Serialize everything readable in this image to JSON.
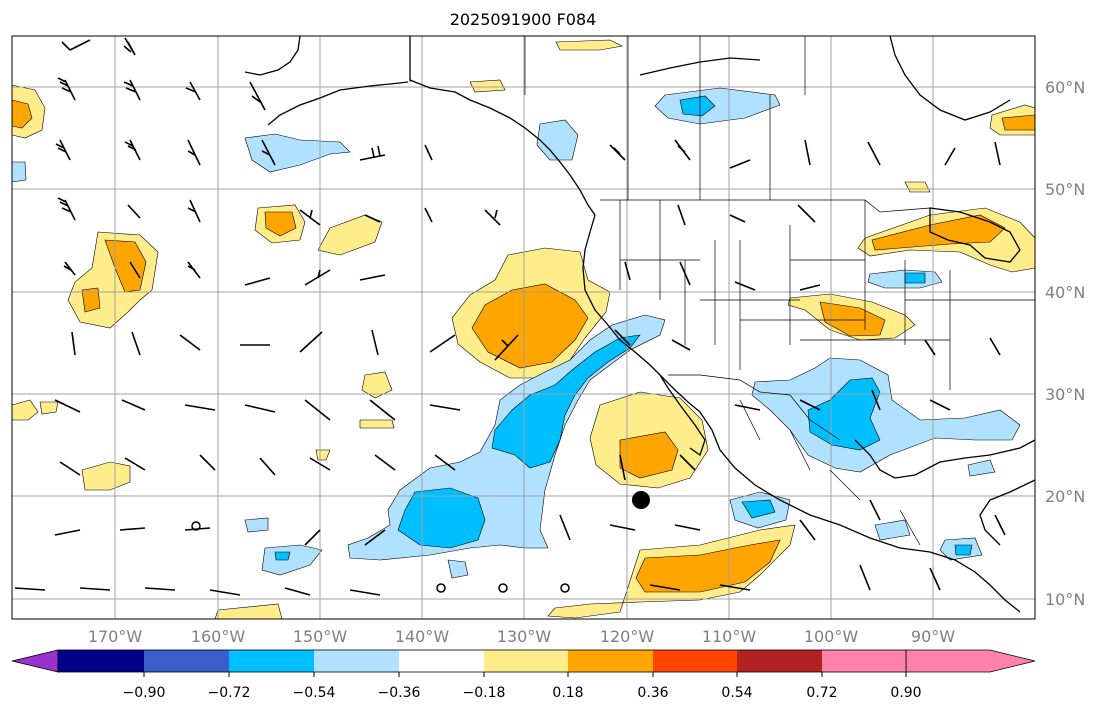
{
  "title": "2025091900 F084",
  "lat_labels": [
    "60°N",
    "50°N",
    "40°N",
    "30°N",
    "20°N",
    "10°N"
  ],
  "lon_labels": [
    "170°W",
    "160°W",
    "150°W",
    "140°W",
    "130°W",
    "120°W",
    "110°W",
    "100°W",
    "90°W"
  ],
  "colorbar": {
    "colors": [
      "#9a32cd",
      "#00008b",
      "#3a5fcd",
      "#00bfff",
      "#b0e2ff",
      "#ffffff",
      "#ffec8b",
      "#ffa500",
      "#ff4500",
      "#b22222",
      "#ff82ab"
    ],
    "tick_labels": [
      "−0.90",
      "−0.72",
      "−0.54",
      "−0.36",
      "−0.18",
      "0.18",
      "0.36",
      "0.54",
      "0.72",
      "0.90"
    ]
  },
  "colors": {
    "ocean": "#ffffff",
    "pos_light": "#ffec8b",
    "pos_mid": "#ffa500",
    "neg_light": "#b0e2ff",
    "neg_mid": "#00bfff",
    "grid": "#a0a0a0",
    "coast": "#000000"
  }
}
